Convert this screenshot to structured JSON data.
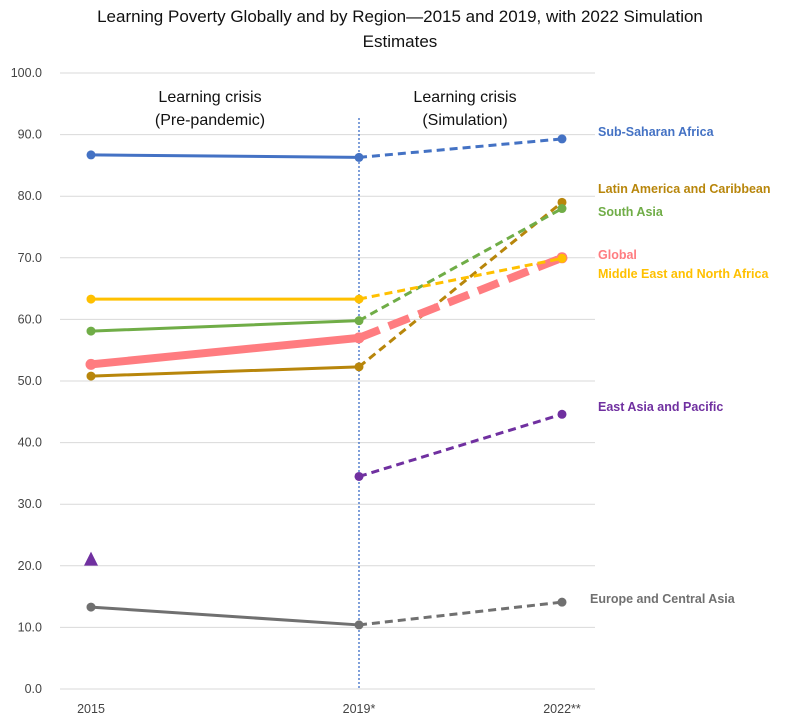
{
  "chart_data": {
    "type": "line",
    "title": "Learning Poverty Globally and by Region—2015 and 2019, with 2022 Simulation Estimates",
    "xlabel": "",
    "ylabel": "",
    "categories": [
      "2015",
      "2019*",
      "2022**"
    ],
    "ylim": [
      0,
      100
    ],
    "yticks": [
      "0.0",
      "10.0",
      "20.0",
      "30.0",
      "40.0",
      "50.0",
      "60.0",
      "70.0",
      "80.0",
      "90.0",
      "100.0"
    ],
    "grid": true,
    "annotations": {
      "left": [
        "Learning crisis",
        "(Pre-pandemic)"
      ],
      "right": [
        "Learning crisis",
        "(Simulation)"
      ]
    },
    "series": [
      {
        "name": "Sub-Saharan Africa",
        "color": "#4472C4",
        "values": [
          86.7,
          86.3,
          89.3
        ],
        "width": 3
      },
      {
        "name": "Latin America and Caribbean",
        "color": "#B8860B",
        "values": [
          50.8,
          52.3,
          79.0
        ],
        "width": 3
      },
      {
        "name": "South Asia",
        "color": "#70AD47",
        "values": [
          58.1,
          59.8,
          78.0
        ],
        "width": 3
      },
      {
        "name": "Global",
        "color": "#FF7C80",
        "values": [
          52.7,
          57.0,
          70.0
        ],
        "width": 8
      },
      {
        "name": "Middle East and North Africa",
        "color": "#FFC000",
        "values": [
          63.3,
          63.3,
          69.9
        ],
        "width": 3
      },
      {
        "name": "East Asia and Pacific",
        "color": "#7030A0",
        "values": [
          null,
          34.5,
          44.6
        ],
        "width": 3,
        "marker_2015": 21.0
      },
      {
        "name": "Europe and Central Asia",
        "color": "#707070",
        "values": [
          13.3,
          10.4,
          14.1
        ],
        "width": 3
      }
    ]
  }
}
